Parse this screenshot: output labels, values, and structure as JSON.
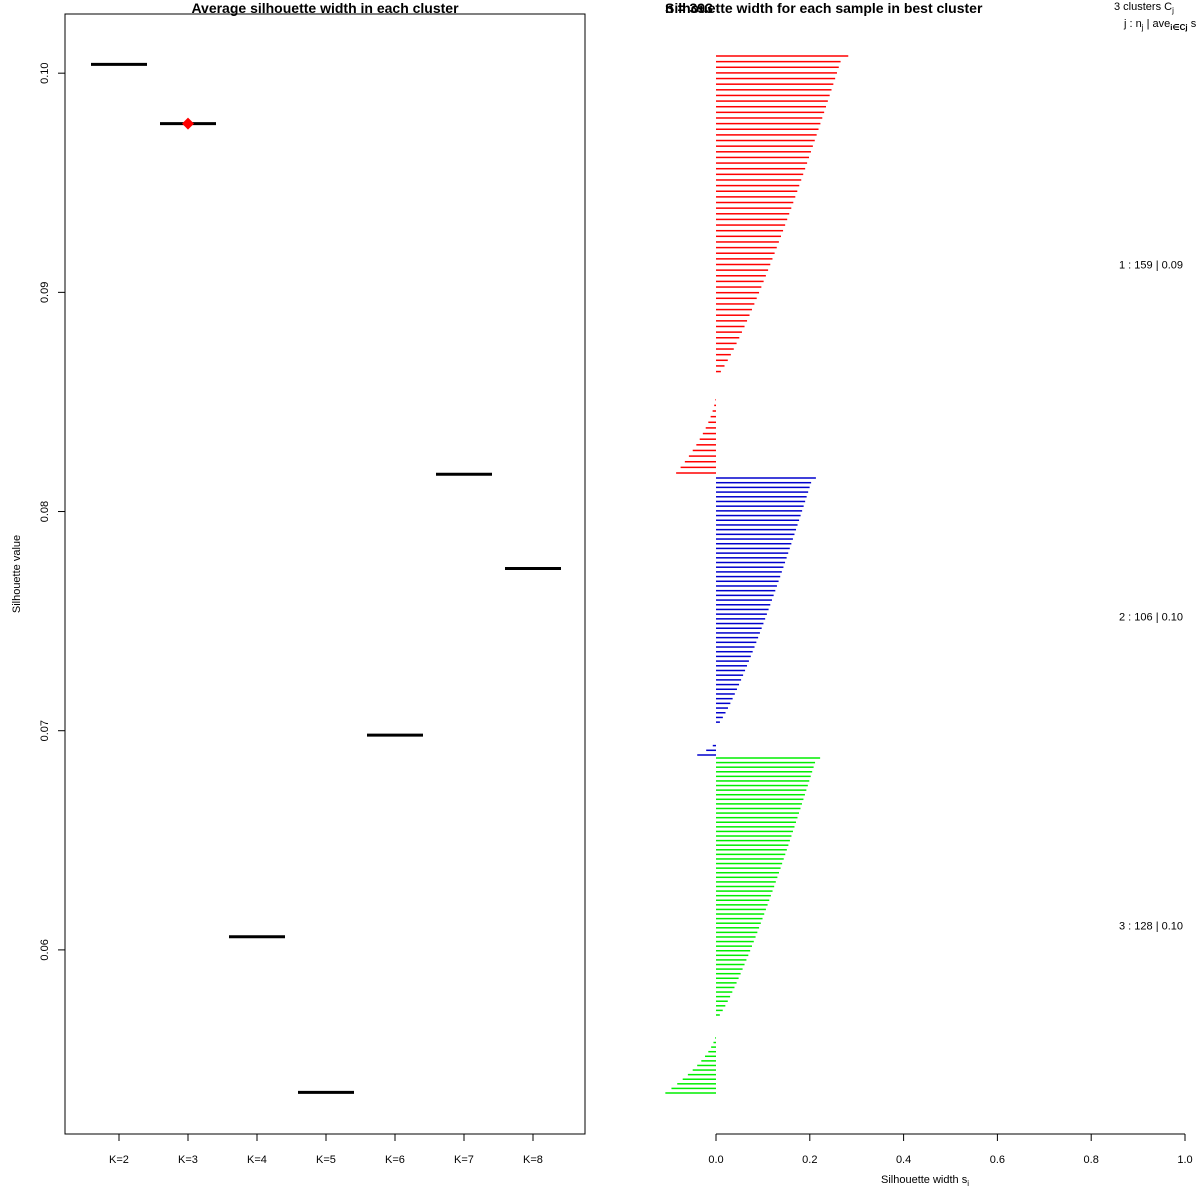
{
  "chart_data": [
    {
      "type": "scatter",
      "title": "Average silhouette width in each cluster",
      "xlabel": "",
      "ylabel": "Silhouette value",
      "categories": [
        "K=2",
        "K=3",
        "K=4",
        "K=5",
        "K=6",
        "K=7",
        "K=8"
      ],
      "values": [
        0.1004,
        0.0977,
        0.0606,
        0.0535,
        0.0698,
        0.0817,
        0.0774
      ],
      "ylim": [
        0.0516,
        0.1027
      ],
      "yticks": [
        "0.06",
        "0.07",
        "0.08",
        "0.09",
        "0.10"
      ],
      "best_index": 1,
      "best_color": "#ff0000",
      "line_color": "#000000"
    },
    {
      "type": "bar",
      "title": "Silhouette width for each sample in best cluster",
      "title_overlap": "n = 393",
      "xlabel": "Silhouette width s",
      "xlabel_sub": "i",
      "xlim": [
        0,
        1
      ],
      "xticks": [
        "0.0",
        "0.2",
        "0.4",
        "0.6",
        "0.8",
        "1.0"
      ],
      "header_line1": "3  clusters  C",
      "header_line1_sub": "j",
      "header_line2": "j :  n",
      "header_line2_sub": "j",
      "header_line2_rest": " | ave",
      "header_line2_sub2": "i∈Cj",
      "header_line2_end": "  s",
      "clusters": [
        {
          "id": 1,
          "label": "1 :  159  |  0.09",
          "color": "#ff0000",
          "n_bars": 75,
          "max": 0.282,
          "min": -0.085,
          "neg_bars": 14
        },
        {
          "id": 2,
          "label": "2 :  106  |  0.10",
          "color": "#0000cd",
          "n_bars": 60,
          "max": 0.213,
          "min": -0.04,
          "neg_bars": 3
        },
        {
          "id": 3,
          "label": "3 :  128  |  0.10",
          "color": "#00ee00",
          "n_bars": 74,
          "max": 0.222,
          "min": -0.108,
          "neg_bars": 13
        }
      ]
    }
  ]
}
